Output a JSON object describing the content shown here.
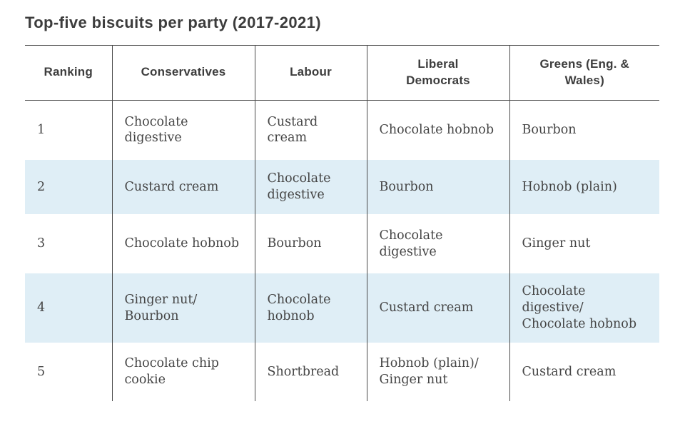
{
  "title": "Top-five biscuits per party (2017-2021)",
  "colors": {
    "stripe_bg": "#dfeef6",
    "border_color": "#4a4a4a",
    "title_color": "#3c3c3c",
    "header_color": "#3d3d3d",
    "body_color": "#454545",
    "page_bg": "#ffffff"
  },
  "chart_data": {
    "type": "table",
    "title": "Top-five biscuits per party (2017-2021)",
    "columns": [
      "Ranking",
      "Conservatives",
      "Labour",
      "Liberal Democrats",
      "Greens (Eng. & Wales)"
    ],
    "rows": [
      [
        "1",
        "Chocolate digestive",
        "Custard cream",
        "Chocolate hobnob",
        "Bourbon"
      ],
      [
        "2",
        "Custard cream",
        "Chocolate digestive",
        "Bourbon",
        "Hobnob (plain)"
      ],
      [
        "3",
        "Chocolate hobnob",
        "Bourbon",
        "Chocolate digestive",
        "Ginger nut"
      ],
      [
        "4",
        "Ginger nut/Bourbon",
        "Chocolate hobnob",
        "Custard cream",
        "Chocolate digestive/Chocolate hobnob"
      ],
      [
        "5",
        "Chocolate chip cookie",
        "Shortbread",
        "Hobnob (plain)/Ginger nut",
        "Custard cream"
      ]
    ],
    "layout_hints": {
      "striped_rows": [
        2,
        4
      ],
      "borders": "top rule, rule under header, vertical rules between columns only",
      "header_align": "center",
      "body_align": "left"
    }
  },
  "table": {
    "headers": [
      "Ranking",
      "Conservatives",
      "Labour",
      "Liberal\nDemocrats",
      "Greens (Eng. &\nWales)"
    ],
    "rows": [
      [
        "1",
        "Chocolate\ndigestive",
        "Custard\ncream",
        "Chocolate hobnob",
        "Bourbon"
      ],
      [
        "2",
        "Custard cream",
        "Chocolate\ndigestive",
        "Bourbon",
        "Hobnob (plain)"
      ],
      [
        "3",
        "Chocolate hobnob",
        "Bourbon",
        "Chocolate\ndigestive",
        "Ginger nut"
      ],
      [
        "4",
        "Ginger nut/\nBourbon",
        "Chocolate\nhobnob",
        "Custard cream",
        "Chocolate\ndigestive/\nChocolate hobnob"
      ],
      [
        "5",
        "Chocolate chip\ncookie",
        "Shortbread",
        "Hobnob (plain)/\nGinger nut",
        "Custard cream"
      ]
    ]
  }
}
